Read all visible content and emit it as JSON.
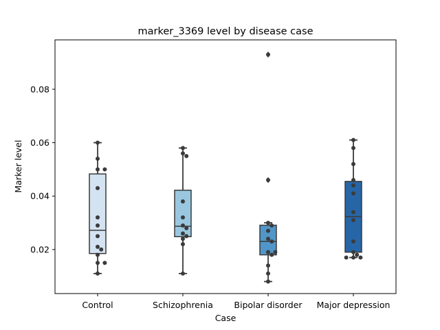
{
  "chart_data": {
    "type": "box",
    "title": "marker_3369 level by disease case",
    "xlabel": "Case",
    "ylabel": "Marker level",
    "categories": [
      "Control",
      "Schizophrenia",
      "Bipolar disorder",
      "Major depression"
    ],
    "ylim": [
      0.0035,
      0.0985
    ],
    "yticks": [
      0.02,
      0.04,
      0.06,
      0.08
    ],
    "ytick_labels": [
      "0.02",
      "0.04",
      "0.06",
      "0.08"
    ],
    "grid": false,
    "colors": [
      "#d4e3f2",
      "#9ac7e0",
      "#5196c8",
      "#2766a6"
    ],
    "edge_color": "#3a3a3a",
    "point_color": "#3b3b3b",
    "boxes": [
      {
        "q1": 0.0185,
        "median": 0.0272,
        "q3": 0.0483,
        "whisker_low": 0.011,
        "whisker_high": 0.06,
        "fliers": []
      },
      {
        "q1": 0.0248,
        "median": 0.0287,
        "q3": 0.0422,
        "whisker_low": 0.011,
        "whisker_high": 0.058,
        "fliers": []
      },
      {
        "q1": 0.018,
        "median": 0.023,
        "q3": 0.0291,
        "whisker_low": 0.008,
        "whisker_high": 0.03,
        "fliers": [
          0.046,
          0.093
        ]
      },
      {
        "q1": 0.019,
        "median": 0.0323,
        "q3": 0.0455,
        "whisker_low": 0.017,
        "whisker_high": 0.061,
        "fliers": []
      }
    ],
    "points": [
      [
        0.06,
        0.054,
        0.05,
        0.05,
        0.043,
        0.032,
        0.029,
        0.025,
        0.021,
        0.02,
        0.018,
        0.015,
        0.015,
        0.011
      ],
      [
        0.058,
        0.056,
        0.055,
        0.038,
        0.032,
        0.029,
        0.028,
        0.026,
        0.025,
        0.024,
        0.022,
        0.011
      ],
      [
        0.093,
        0.046,
        0.03,
        0.029,
        0.027,
        0.024,
        0.023,
        0.019,
        0.019,
        0.018,
        0.014,
        0.011,
        0.008
      ],
      [
        0.061,
        0.058,
        0.052,
        0.046,
        0.044,
        0.041,
        0.034,
        0.031,
        0.023,
        0.019,
        0.018,
        0.017,
        0.017,
        0.017
      ]
    ]
  }
}
